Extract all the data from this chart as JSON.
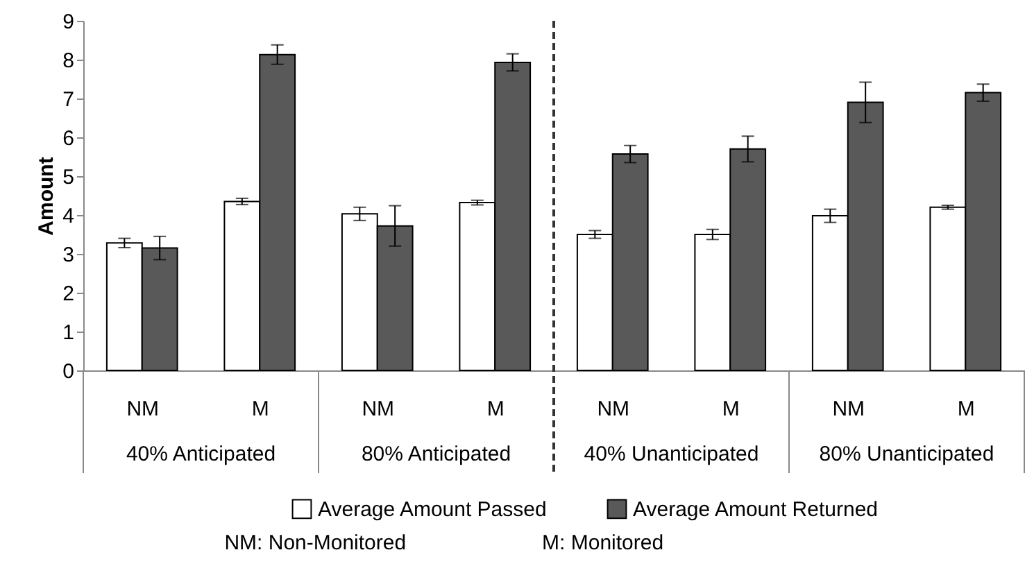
{
  "chart_data": {
    "type": "bar",
    "ylabel": "Amount",
    "categories": [
      "NM",
      "M",
      "NM",
      "M",
      "NM",
      "M",
      "NM",
      "M"
    ],
    "series": [
      {
        "name": "Average Amount Passed",
        "color": "#ffffff",
        "values": [
          3.28,
          4.35,
          4.03,
          4.32,
          3.5,
          3.5,
          3.98,
          4.2
        ],
        "errors": [
          0.12,
          0.08,
          0.17,
          0.06,
          0.1,
          0.13,
          0.17,
          0.05
        ]
      },
      {
        "name": "Average Amount Returned",
        "color": "#595959",
        "values": [
          3.15,
          8.13,
          3.72,
          7.93,
          5.57,
          5.7,
          6.9,
          7.15
        ],
        "errors": [
          0.3,
          0.25,
          0.52,
          0.22,
          0.22,
          0.33,
          0.52,
          0.22
        ]
      }
    ],
    "ylim": [
      0,
      9
    ],
    "yticks": [
      0,
      1,
      2,
      3,
      4,
      5,
      6,
      7,
      8,
      9
    ],
    "grid": false,
    "legend": "bottom",
    "annotations": [
      "40% Anticipated",
      "80% Anticipated",
      "40% Unanticipated",
      "80% Unanticipated",
      "NM: Non-Monitored",
      "M: Monitored"
    ]
  }
}
